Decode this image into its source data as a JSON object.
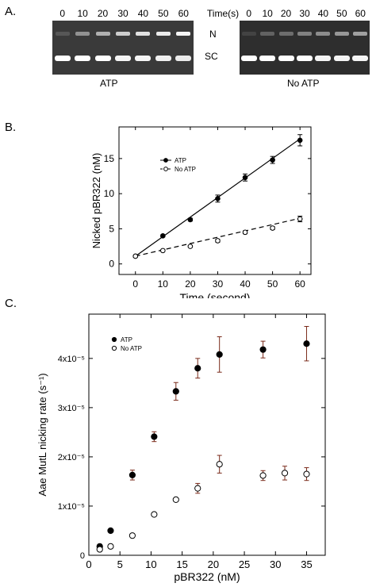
{
  "panels": {
    "a": {
      "letter": "A.",
      "time_header": "Time(s)",
      "band_n": "N",
      "band_sc": "SC",
      "gels": [
        {
          "caption": "ATP",
          "lanes": [
            "0",
            "10",
            "20",
            "30",
            "40",
            "50",
            "60"
          ],
          "n_intensity": [
            0.15,
            0.45,
            0.6,
            0.75,
            0.85,
            0.9,
            0.95
          ],
          "sc_intensity": [
            1,
            1,
            1,
            0.95,
            0.95,
            0.92,
            0.9
          ]
        },
        {
          "caption": "No ATP",
          "lanes": [
            "0",
            "10",
            "20",
            "30",
            "40",
            "50",
            "60"
          ],
          "n_intensity": [
            0.1,
            0.25,
            0.3,
            0.4,
            0.45,
            0.5,
            0.55
          ],
          "sc_intensity": [
            1,
            1,
            1,
            1,
            0.95,
            0.95,
            0.95
          ]
        }
      ]
    },
    "b": {
      "letter": "B."
    },
    "c": {
      "letter": "C."
    }
  },
  "chart_data": [
    {
      "type": "line",
      "panel": "B",
      "xlabel": "Time (second)",
      "ylabel": "Nicked pBR322 (nM)",
      "xlim": [
        -6,
        64
      ],
      "ylim": [
        -1.5,
        19.5
      ],
      "xticks": [
        0,
        10,
        20,
        30,
        40,
        50,
        60
      ],
      "yticks": [
        0,
        5,
        10,
        15
      ],
      "legend_position": "top-left",
      "series": [
        {
          "name": "ATP",
          "marker": "filled",
          "line": "solid",
          "x": [
            0,
            10,
            20,
            30,
            40,
            50,
            60
          ],
          "y": [
            1.1,
            4.0,
            6.3,
            9.3,
            12.3,
            14.8,
            17.6
          ],
          "err": [
            0.1,
            0.15,
            0.2,
            0.5,
            0.5,
            0.5,
            0.8
          ],
          "fit": [
            [
              0,
              1.1
            ],
            [
              60,
              17.8
            ]
          ]
        },
        {
          "name": "No ATP",
          "marker": "open",
          "line": "dashed",
          "x": [
            0,
            10,
            20,
            30,
            40,
            50,
            60
          ],
          "y": [
            1.1,
            1.9,
            2.5,
            3.3,
            4.5,
            5.1,
            6.4
          ],
          "err": [
            0.1,
            0.1,
            0.1,
            0.2,
            0.2,
            0.2,
            0.4
          ],
          "fit": [
            [
              0,
              1.1
            ],
            [
              60,
              6.5
            ]
          ]
        }
      ]
    },
    {
      "type": "scatter",
      "panel": "C",
      "xlabel": "pBR322 (nM)",
      "ylabel": "Aae MutL nicking rate (s⁻¹)",
      "xlim": [
        0,
        38
      ],
      "ylim": [
        0,
        4.9e-05
      ],
      "xticks": [
        0,
        5,
        10,
        15,
        20,
        25,
        30,
        35
      ],
      "yticks": [
        0,
        1e-05,
        2e-05,
        3e-05,
        4e-05
      ],
      "ytick_labels": [
        "0",
        "1x10⁻⁵",
        "2x10⁻⁵",
        "3x10⁻⁵",
        "4x10⁻⁵"
      ],
      "legend_position": "top-left",
      "series": [
        {
          "name": "ATP",
          "marker": "filled",
          "x": [
            1.75,
            3.5,
            7,
            10.5,
            14,
            17.5,
            21,
            28,
            35
          ],
          "y": [
            1.8e-06,
            5e-06,
            1.63e-05,
            2.41e-05,
            3.33e-05,
            3.8e-05,
            4.08e-05,
            4.18e-05,
            4.3e-05
          ],
          "err": [
            0,
            0,
            1e-06,
            1e-06,
            1.8e-06,
            2e-06,
            3.6e-06,
            1.7e-06,
            3.5e-06
          ]
        },
        {
          "name": "No ATP",
          "marker": "open",
          "x": [
            1.75,
            3.5,
            7,
            10.5,
            14,
            17.5,
            21,
            28,
            31.5,
            35
          ],
          "y": [
            1.2e-06,
            1.8e-06,
            4e-06,
            8.3e-06,
            1.13e-05,
            1.36e-05,
            1.85e-05,
            1.62e-05,
            1.67e-05,
            1.65e-05
          ],
          "err": [
            0,
            0,
            0,
            0,
            0,
            1e-06,
            1.8e-06,
            1e-06,
            1.4e-06,
            1.3e-06
          ]
        }
      ]
    }
  ]
}
